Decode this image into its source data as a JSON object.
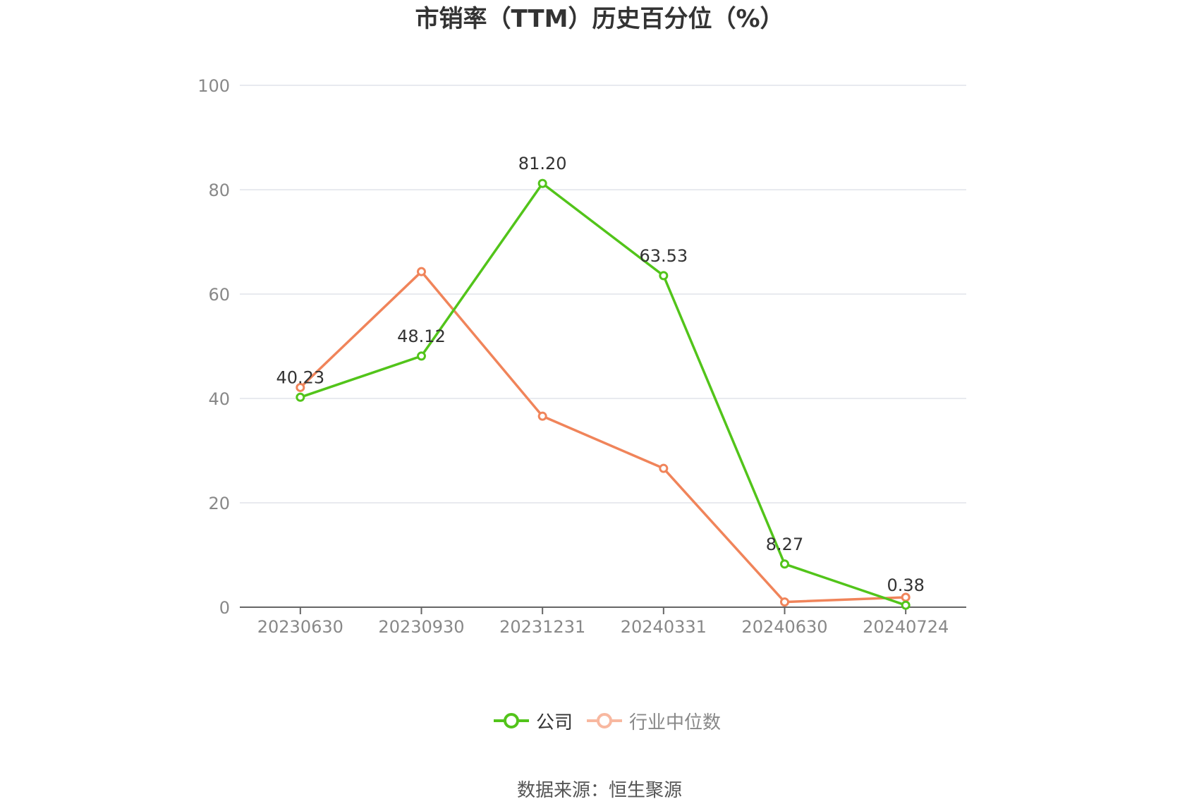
{
  "title": "市销率（TTM）历史百分位（%）",
  "source": "数据来源：恒生聚源",
  "colors": {
    "company": "#52c41a",
    "industry": "#f0845a",
    "industry_legend": "#f8b8a0",
    "grid": "#e0e3ea",
    "axis": "#666666",
    "tick": "#888888"
  },
  "legend": {
    "company": "公司",
    "industry": "行业中位数"
  },
  "chart_data": {
    "type": "line",
    "categories": [
      "20230630",
      "20230930",
      "20231231",
      "20240331",
      "20240630",
      "20240724"
    ],
    "ylim": [
      0,
      100
    ],
    "yticks": [
      "0",
      "20",
      "40",
      "60",
      "80",
      "100"
    ],
    "grid": true,
    "legend_position": "bottom",
    "series": [
      {
        "name": "公司",
        "values": [
          40.23,
          48.12,
          81.2,
          63.53,
          8.27,
          0.38
        ],
        "labels": [
          "40.23",
          "48.12",
          "81.20",
          "63.53",
          "8.27",
          "0.38"
        ]
      },
      {
        "name": "行业中位数",
        "values": [
          42.1,
          64.3,
          36.6,
          26.6,
          1.0,
          1.9
        ]
      }
    ]
  }
}
